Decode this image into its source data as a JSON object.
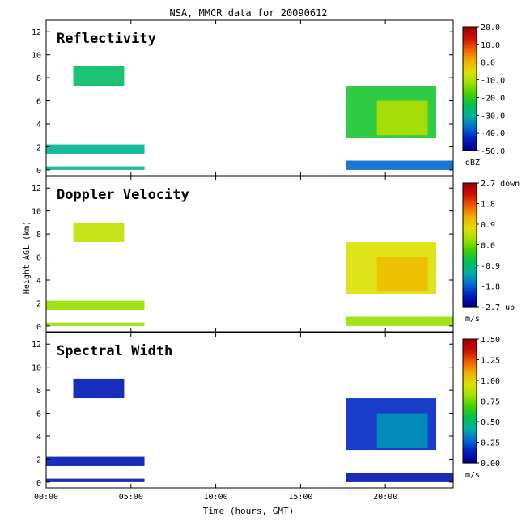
{
  "chart_data": {
    "type": "heatmap",
    "title": "NSA, MMCR data for 20090612",
    "xlabel": "Time (hours, GMT)",
    "ylabel": "Height AGL (km)",
    "xlim": [
      0,
      24
    ],
    "ylim": [
      -0.5,
      13
    ],
    "x_ticks": [
      0,
      5,
      10,
      15,
      20
    ],
    "x_tick_labels": [
      "00:00",
      "05:00",
      "10:00",
      "15:00",
      "20:00"
    ],
    "y_ticks": [
      0,
      2,
      4,
      6,
      8,
      10,
      12
    ],
    "y_tick_labels": [
      "0",
      "2",
      "4",
      "6",
      "8",
      "10",
      "12"
    ],
    "panels": [
      {
        "name": "Reflectivity",
        "unit": "dBZ",
        "colorbar_ticks": [
          "20.0",
          "10.0",
          "0.0",
          "-10.0",
          "-20.0",
          "-30.0",
          "-40.0",
          "-50.0"
        ],
        "colorbar_range": [
          -50,
          20
        ],
        "regions": [
          {
            "x": [
              1.6,
              4.6
            ],
            "y": [
              7.3,
              9.0
            ],
            "value": -26
          },
          {
            "x": [
              17.7,
              23.0
            ],
            "y": [
              2.8,
              7.3
            ],
            "value": -22
          },
          {
            "x": [
              19.5,
              22.5
            ],
            "y": [
              3.0,
              6.0
            ],
            "value": -10
          },
          {
            "x": [
              0.0,
              5.8
            ],
            "y": [
              1.4,
              2.2
            ],
            "value": -30
          },
          {
            "x": [
              0.0,
              5.8
            ],
            "y": [
              0.0,
              0.3
            ],
            "value": -30
          },
          {
            "x": [
              17.7,
              24.0
            ],
            "y": [
              0.0,
              0.8
            ],
            "value": -38
          }
        ]
      },
      {
        "name": "Doppler Velocity",
        "unit": "m/s",
        "colorbar_ticks": [
          "2.7 down",
          "1.8",
          "0.9",
          "0.0",
          "-0.9",
          "-1.8",
          "-2.7 up"
        ],
        "colorbar_range": [
          -2.7,
          2.7
        ],
        "regions": [
          {
            "x": [
              1.6,
              4.6
            ],
            "y": [
              7.3,
              9.0
            ],
            "value": 0.5
          },
          {
            "x": [
              17.7,
              23.0
            ],
            "y": [
              2.8,
              7.3
            ],
            "value": 0.7
          },
          {
            "x": [
              19.5,
              22.5
            ],
            "y": [
              3.0,
              6.0
            ],
            "value": 1.1
          },
          {
            "x": [
              0.0,
              5.8
            ],
            "y": [
              1.4,
              2.2
            ],
            "value": 0.2
          },
          {
            "x": [
              0.0,
              5.8
            ],
            "y": [
              0.0,
              0.3
            ],
            "value": 0.2
          },
          {
            "x": [
              17.7,
              24.0
            ],
            "y": [
              0.0,
              0.8
            ],
            "value": 0.2
          }
        ]
      },
      {
        "name": "Spectral Width",
        "unit": "m/s",
        "colorbar_ticks": [
          "1.50",
          "1.25",
          "1.00",
          "0.75",
          "0.50",
          "0.25",
          "0.00"
        ],
        "colorbar_range": [
          0,
          1.5
        ],
        "regions": [
          {
            "x": [
              1.6,
              4.6
            ],
            "y": [
              7.3,
              9.0
            ],
            "value": 0.1
          },
          {
            "x": [
              17.7,
              23.0
            ],
            "y": [
              2.8,
              7.3
            ],
            "value": 0.15
          },
          {
            "x": [
              19.5,
              22.5
            ],
            "y": [
              3.0,
              6.0
            ],
            "value": 0.35
          },
          {
            "x": [
              0.0,
              5.8
            ],
            "y": [
              1.4,
              2.2
            ],
            "value": 0.1
          },
          {
            "x": [
              0.0,
              5.8
            ],
            "y": [
              0.0,
              0.3
            ],
            "value": 0.1
          },
          {
            "x": [
              17.7,
              24.0
            ],
            "y": [
              0.0,
              0.8
            ],
            "value": 0.08
          }
        ]
      }
    ]
  }
}
